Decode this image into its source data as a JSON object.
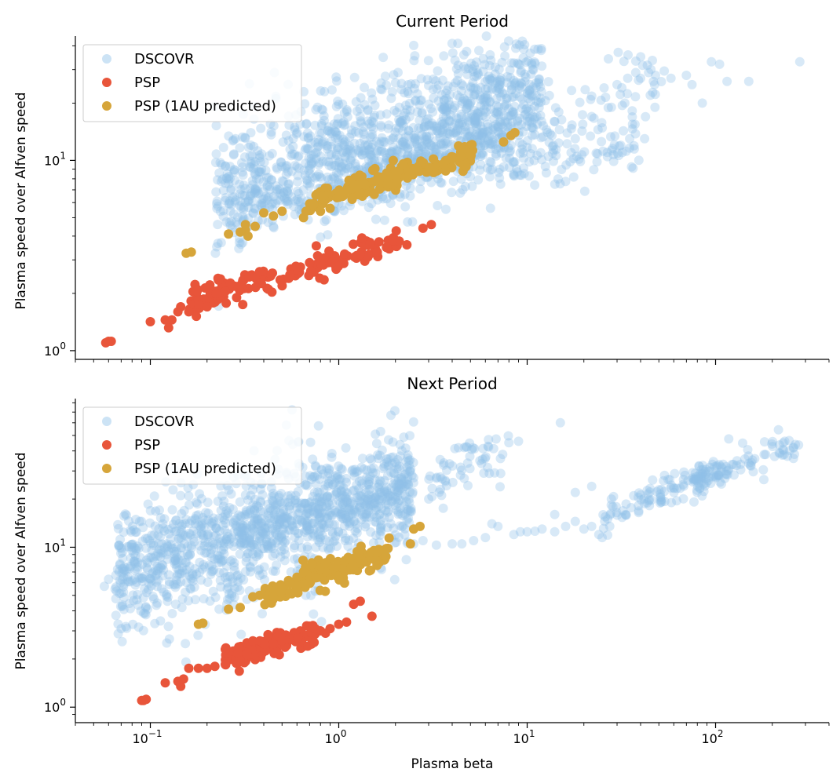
{
  "chart_data": [
    {
      "type": "scatter",
      "title": "Current Period",
      "xlabel": "",
      "ylabel": "Plasma speed over Alfven speed",
      "xscale": "log",
      "yscale": "log",
      "xlim": [
        0.04,
        400
      ],
      "ylim": [
        0.9,
        45
      ],
      "yticks": [
        {
          "value": 1,
          "label": "10",
          "exp": "0"
        },
        {
          "value": 10,
          "label": "10",
          "exp": "1"
        }
      ],
      "grid": false,
      "legend": "top-left",
      "series": [
        {
          "name": "DSCOVR",
          "color": "#8fc1e8",
          "alpha": 0.35,
          "bands": [
            {
              "x": [
                0.22,
                12
              ],
              "y": [
                6.6,
                25
              ],
              "spread": 0.17,
              "n": 900
            },
            {
              "x": [
                0.25,
                5
              ],
              "y": [
                5.5,
                9.5
              ],
              "spread": 0.07,
              "n": 200
            },
            {
              "x": [
                0.8,
                12
              ],
              "y": [
                9.0,
                21
              ],
              "spread": 0.12,
              "n": 220
            },
            {
              "x": [
                1.5,
                8
              ],
              "y": [
                9.0,
                14
              ],
              "spread": 0.06,
              "n": 120
            },
            {
              "x": [
                6,
                40
              ],
              "y": [
                9.5,
                12
              ],
              "spread": 0.07,
              "n": 90
            },
            {
              "x": [
                5,
                55
              ],
              "y": [
                12,
                27
              ],
              "spread": 0.12,
              "n": 110
            }
          ],
          "points": [
            [
              280,
              33
            ],
            [
              105,
              32
            ],
            [
              95,
              33
            ],
            [
              70,
              28
            ],
            [
              75,
              25
            ],
            [
              58,
              27
            ],
            [
              48,
              28
            ],
            [
              40,
              27
            ],
            [
              30,
              25
            ],
            [
              85,
              20
            ],
            [
              45,
              22
            ],
            [
              33,
              20
            ],
            [
              115,
              26
            ],
            [
              150,
              26
            ],
            [
              28,
              19
            ],
            [
              22,
              17
            ],
            [
              18,
              13
            ],
            [
              35,
              13
            ],
            [
              32,
              11
            ],
            [
              42,
              13
            ]
          ]
        },
        {
          "name": "PSP",
          "color": "#e8553a",
          "alpha": 1,
          "bands": [
            {
              "x": [
                0.16,
                2.1
              ],
              "y": [
                1.85,
                3.6
              ],
              "spread": 0.04,
              "n": 150
            }
          ],
          "points": [
            [
              0.058,
              1.1
            ],
            [
              0.06,
              1.12
            ],
            [
              0.062,
              1.12
            ],
            [
              0.1,
              1.42
            ],
            [
              0.12,
              1.45
            ],
            [
              0.125,
              1.32
            ],
            [
              0.13,
              1.45
            ],
            [
              0.14,
              1.6
            ],
            [
              0.145,
              1.7
            ],
            [
              0.16,
              1.6
            ],
            [
              0.18,
              1.75
            ],
            [
              0.2,
              1.7
            ],
            [
              0.23,
              2.35
            ],
            [
              0.25,
              2.05
            ],
            [
              0.3,
              2.2
            ],
            [
              0.38,
              2.6
            ],
            [
              0.55,
              2.5
            ],
            [
              0.7,
              2.9
            ],
            [
              2.8,
              4.4
            ],
            [
              3.1,
              4.6
            ],
            [
              1.3,
              3.2
            ],
            [
              1.6,
              3.3
            ],
            [
              2.3,
              3.6
            ]
          ]
        },
        {
          "name": "PSP (1AU predicted)",
          "color": "#d6a53a",
          "alpha": 1,
          "bands": [
            {
              "x": [
                0.7,
                5.2
              ],
              "y": [
                6.0,
                11
              ],
              "spread": 0.035,
              "n": 170
            }
          ],
          "points": [
            [
              0.155,
              3.25
            ],
            [
              0.165,
              3.3
            ],
            [
              0.26,
              4.1
            ],
            [
              0.3,
              4.2
            ],
            [
              0.32,
              4.3
            ],
            [
              0.33,
              4.0
            ],
            [
              0.32,
              4.6
            ],
            [
              0.36,
              4.5
            ],
            [
              0.4,
              5.3
            ],
            [
              0.45,
              5.1
            ],
            [
              0.5,
              5.4
            ],
            [
              0.65,
              5.0
            ],
            [
              0.67,
              5.4
            ],
            [
              0.8,
              5.4
            ],
            [
              0.82,
              6.5
            ],
            [
              0.9,
              5.6
            ],
            [
              1.0,
              6.4
            ],
            [
              7.5,
              12.5
            ],
            [
              8.2,
              13.5
            ],
            [
              8.6,
              14
            ],
            [
              5.0,
              10.6
            ],
            [
              4.0,
              10.2
            ]
          ]
        }
      ]
    },
    {
      "type": "scatter",
      "title": "Next Period",
      "xlabel": "Plasma beta",
      "ylabel": "Plasma speed over Alfven speed",
      "xscale": "log",
      "yscale": "log",
      "xlim": [
        0.04,
        400
      ],
      "ylim": [
        0.8,
        85
      ],
      "yticks": [
        {
          "value": 1,
          "label": "10",
          "exp": "0"
        },
        {
          "value": 10,
          "label": "10",
          "exp": "1"
        }
      ],
      "xticks": [
        {
          "value": 0.1,
          "label": "10",
          "exp": "−1"
        },
        {
          "value": 1,
          "label": "10",
          "exp": "0"
        },
        {
          "value": 10,
          "label": "10",
          "exp": "1"
        },
        {
          "value": 100,
          "label": "10",
          "exp": "2"
        }
      ],
      "grid": false,
      "legend": "top-left",
      "series": [
        {
          "name": "DSCOVR",
          "color": "#8fc1e8",
          "alpha": 0.35,
          "bands": [
            {
              "x": [
                0.065,
                2.5
              ],
              "y": [
                6.8,
                23
              ],
              "spread": 0.2,
              "n": 1100
            },
            {
              "x": [
                0.3,
                2.5
              ],
              "y": [
                12,
                26
              ],
              "spread": 0.1,
              "n": 250
            },
            {
              "x": [
                3,
                8
              ],
              "y": [
                25,
                45
              ],
              "spread": 0.08,
              "n": 60
            },
            {
              "x": [
                25,
                280
              ],
              "y": [
                15,
                46
              ],
              "spread": 0.05,
              "n": 160
            },
            {
              "x": [
                75,
                110
              ],
              "y": [
                27,
                31
              ],
              "spread": 0.04,
              "n": 40
            }
          ],
          "points": [
            [
              0.057,
              5.7
            ],
            [
              0.06,
              6.3
            ],
            [
              15,
              60
            ],
            [
              9,
              46
            ],
            [
              8,
              45
            ],
            [
              3.3,
              10.3
            ],
            [
              4.0,
              10.5
            ],
            [
              4.5,
              10.5
            ],
            [
              5.2,
              11.0
            ],
            [
              6.0,
              11.5
            ],
            [
              7.0,
              13.5
            ],
            [
              6.5,
              14.0
            ],
            [
              8.5,
              12
            ],
            [
              9.2,
              12.5
            ],
            [
              10,
              12.5
            ],
            [
              11,
              12.6
            ],
            [
              12,
              13.0
            ],
            [
              14,
              12.5
            ],
            [
              16,
              13.5
            ],
            [
              18,
              14.5
            ],
            [
              20,
              13
            ],
            [
              22,
              13.5
            ],
            [
              24,
              12.0
            ],
            [
              25,
              11.5
            ],
            [
              26,
              15.5
            ],
            [
              28,
              20
            ],
            [
              22,
              24
            ],
            [
              18,
              22
            ],
            [
              14,
              16
            ],
            [
              2.5,
              10.5
            ],
            [
              2.8,
              11.0
            ]
          ]
        },
        {
          "name": "PSP",
          "color": "#e8553a",
          "alpha": 1,
          "bands": [
            {
              "x": [
                0.25,
                0.75
              ],
              "y": [
                2.05,
                2.85
              ],
              "spread": 0.035,
              "n": 130
            }
          ],
          "points": [
            [
              0.09,
              1.1
            ],
            [
              0.095,
              1.12
            ],
            [
              0.092,
              1.1
            ],
            [
              0.12,
              1.42
            ],
            [
              0.14,
              1.45
            ],
            [
              0.145,
              1.35
            ],
            [
              0.15,
              1.5
            ],
            [
              0.16,
              1.75
            ],
            [
              0.18,
              1.75
            ],
            [
              0.2,
              1.75
            ],
            [
              0.22,
              1.8
            ],
            [
              0.25,
              1.85
            ],
            [
              0.25,
              2.3
            ],
            [
              0.3,
              1.95
            ],
            [
              0.33,
              2.5
            ],
            [
              0.35,
              2.6
            ],
            [
              0.8,
              3.0
            ],
            [
              0.9,
              3.1
            ],
            [
              1.0,
              3.3
            ],
            [
              1.1,
              3.4
            ],
            [
              0.75,
              3.1
            ],
            [
              0.85,
              2.9
            ],
            [
              1.5,
              3.7
            ],
            [
              1.2,
              4.4
            ],
            [
              1.3,
              4.6
            ]
          ]
        },
        {
          "name": "PSP (1AU predicted)",
          "color": "#d6a53a",
          "alpha": 1,
          "bands": [
            {
              "x": [
                0.4,
                1.9
              ],
              "y": [
                5.0,
                9.6
              ],
              "spread": 0.04,
              "n": 150
            }
          ],
          "points": [
            [
              0.18,
              3.3
            ],
            [
              0.19,
              3.35
            ],
            [
              0.26,
              4.1
            ],
            [
              0.3,
              4.2
            ],
            [
              0.38,
              5.0
            ],
            [
              0.35,
              4.9
            ],
            [
              0.45,
              4.9
            ],
            [
              0.5,
              5.6
            ],
            [
              0.55,
              5.9
            ],
            [
              0.6,
              6.5
            ],
            [
              0.65,
              7.0
            ],
            [
              0.75,
              7.5
            ],
            [
              0.8,
              7.7
            ],
            [
              0.85,
              8.0
            ],
            [
              0.72,
              8.0
            ],
            [
              0.72,
              7.8
            ],
            [
              2.4,
              10.5
            ],
            [
              2.7,
              13.5
            ],
            [
              2.5,
              13
            ],
            [
              1.3,
              9.5
            ],
            [
              1.6,
              9.4
            ]
          ]
        }
      ]
    }
  ]
}
